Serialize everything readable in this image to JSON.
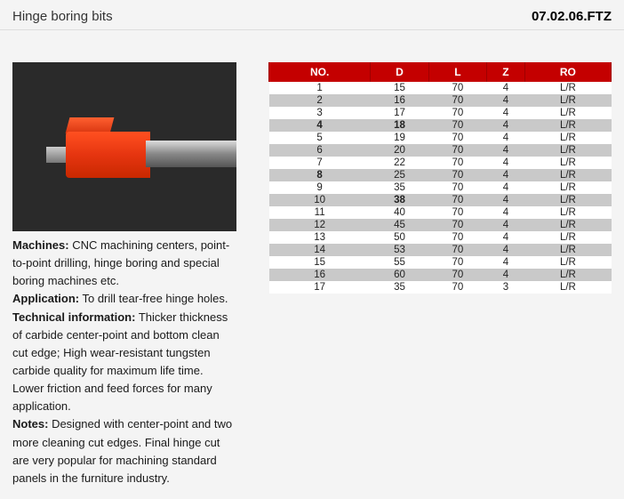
{
  "header": {
    "title": "Hinge boring bits",
    "code": "07.02.06.FTZ"
  },
  "desc": {
    "machines_label": "Machines:",
    "machines_text": " CNC machining centers,   point-to-point drilling, hinge boring and special boring machines etc.",
    "application_label": "Application:",
    "application_text": " To drill tear-free hinge holes.",
    "technical_label": "Technical information:",
    "technical_text": " Thicker thickness of carbide center-point and bottom clean cut edge;  High wear-resistant tungsten carbide quality for maximum life time. Lower friction and feed forces for many application.",
    "notes_label": "Notes:",
    "notes_text": " Designed with center-point and two more cleaning cut edges. Final hinge cut are very popular for machining standard panels in the furniture industry."
  },
  "table": {
    "header_bg": "#c40000",
    "columns": [
      "NO.",
      "D",
      "L",
      "Z",
      "RO"
    ],
    "rows": [
      {
        "no": "1",
        "d": "15",
        "l": "70",
        "z": "4",
        "ro": "L/R",
        "shade": false,
        "bold_cols": []
      },
      {
        "no": "2",
        "d": "16",
        "l": "70",
        "z": "4",
        "ro": "L/R",
        "shade": true,
        "bold_cols": []
      },
      {
        "no": "3",
        "d": "17",
        "l": "70",
        "z": "4",
        "ro": "L/R",
        "shade": false,
        "bold_cols": []
      },
      {
        "no": "4",
        "d": "18",
        "l": "70",
        "z": "4",
        "ro": "L/R",
        "shade": true,
        "bold_cols": [
          "no",
          "d"
        ]
      },
      {
        "no": "5",
        "d": "19",
        "l": "70",
        "z": "4",
        "ro": "L/R",
        "shade": false,
        "bold_cols": []
      },
      {
        "no": "6",
        "d": "20",
        "l": "70",
        "z": "4",
        "ro": "L/R",
        "shade": true,
        "bold_cols": []
      },
      {
        "no": "7",
        "d": "22",
        "l": "70",
        "z": "4",
        "ro": "L/R",
        "shade": false,
        "bold_cols": []
      },
      {
        "no": "8",
        "d": "25",
        "l": "70",
        "z": "4",
        "ro": "L/R",
        "shade": true,
        "bold_cols": [
          "no"
        ]
      },
      {
        "no": "9",
        "d": "35",
        "l": "70",
        "z": "4",
        "ro": "L/R",
        "shade": false,
        "bold_cols": []
      },
      {
        "no": "10",
        "d": "38",
        "l": "70",
        "z": "4",
        "ro": "L/R",
        "shade": true,
        "bold_cols": [
          "d"
        ]
      },
      {
        "no": "11",
        "d": "40",
        "l": "70",
        "z": "4",
        "ro": "L/R",
        "shade": false,
        "bold_cols": []
      },
      {
        "no": "12",
        "d": "45",
        "l": "70",
        "z": "4",
        "ro": "L/R",
        "shade": true,
        "bold_cols": []
      },
      {
        "no": "13",
        "d": "50",
        "l": "70",
        "z": "4",
        "ro": "L/R",
        "shade": false,
        "bold_cols": []
      },
      {
        "no": "14",
        "d": "53",
        "l": "70",
        "z": "4",
        "ro": "L/R",
        "shade": true,
        "bold_cols": []
      },
      {
        "no": "15",
        "d": "55",
        "l": "70",
        "z": "4",
        "ro": "L/R",
        "shade": false,
        "bold_cols": []
      },
      {
        "no": "16",
        "d": "60",
        "l": "70",
        "z": "4",
        "ro": "L/R",
        "shade": true,
        "bold_cols": []
      },
      {
        "no": "17",
        "d": "35",
        "l": "70",
        "z": "3",
        "ro": "L/R",
        "shade": false,
        "bold_cols": []
      }
    ]
  }
}
